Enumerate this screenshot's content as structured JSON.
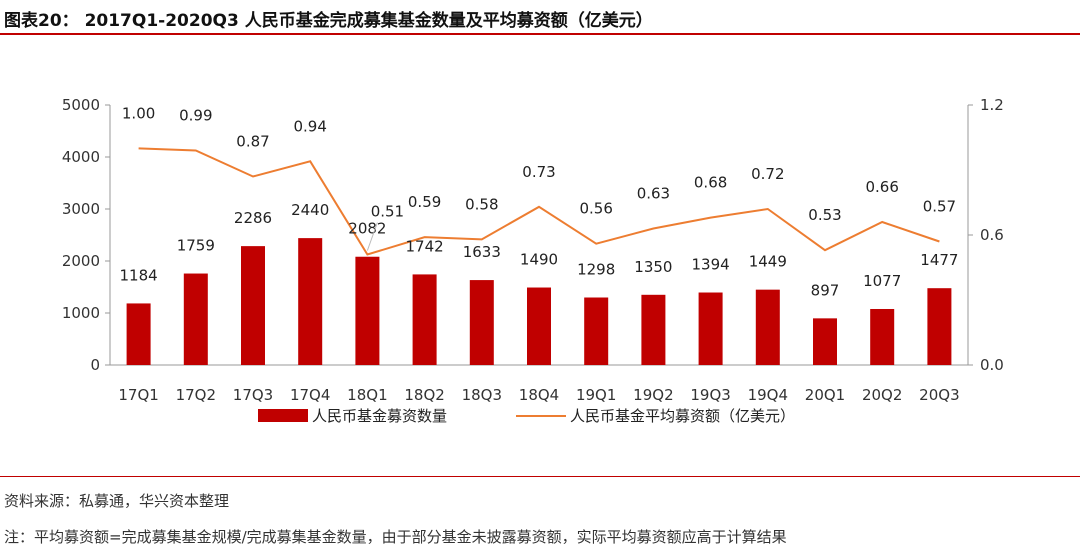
{
  "title": "图表20： 2017Q1-2020Q3 人民币基金完成募集基金数量及平均募资额（亿美元）",
  "source": "资料来源：私募通，华兴资本整理",
  "footnote": "注：平均募资额=完成募集基金规模/完成募集基金数量，由于部分基金未披露募资额，实际平均募资额应高于计算结果",
  "colors": {
    "bar": "#c00000",
    "line": "#ed7d31",
    "rule": "#c00000",
    "axis": "#999999"
  },
  "chart_data": {
    "type": "bar+line",
    "categories": [
      "17Q1",
      "17Q2",
      "17Q3",
      "17Q4",
      "18Q1",
      "18Q2",
      "18Q3",
      "18Q4",
      "19Q1",
      "19Q2",
      "19Q3",
      "19Q4",
      "20Q1",
      "20Q2",
      "20Q3"
    ],
    "series": [
      {
        "name": "人民币基金募资数量",
        "type": "bar",
        "axis": "left",
        "values": [
          1184,
          1759,
          2286,
          2440,
          2082,
          1742,
          1633,
          1490,
          1298,
          1350,
          1394,
          1449,
          897,
          1077,
          1477
        ],
        "labels": [
          "1184",
          "1759",
          "2286",
          "2440",
          "2082",
          "1742",
          "1633",
          "1490",
          "1298",
          "1350",
          "1394",
          "1449",
          "897",
          "1077",
          "1477"
        ]
      },
      {
        "name": "人民币基金平均募资额（亿美元）",
        "type": "line",
        "axis": "right",
        "values": [
          1.0,
          0.99,
          0.87,
          0.94,
          0.51,
          0.59,
          0.58,
          0.73,
          0.56,
          0.63,
          0.68,
          0.72,
          0.53,
          0.66,
          0.57
        ],
        "labels": [
          "1.00",
          "0.99",
          "0.87",
          "0.94",
          "0.51",
          "0.59",
          "0.58",
          "0.73",
          "0.56",
          "0.63",
          "0.68",
          "0.72",
          "0.53",
          "0.66",
          "0.57"
        ]
      }
    ],
    "y_left": {
      "range": [
        0,
        5000
      ],
      "ticks": [
        "0",
        "1000",
        "2000",
        "3000",
        "4000",
        "5000"
      ]
    },
    "y_right": {
      "range": [
        0,
        1.2
      ],
      "ticks": [
        "0.0",
        "0.6",
        "1.2"
      ]
    },
    "legend": "bottom",
    "grid": false
  }
}
